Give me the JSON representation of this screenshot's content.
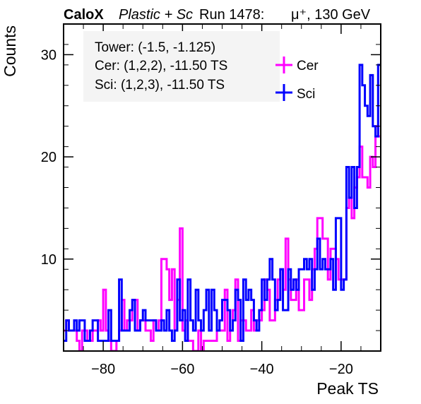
{
  "chart_data": {
    "type": "step-histogram",
    "title": {
      "brand": "CaloX",
      "material": "Plastic + Sc",
      "run": "Run 1478:",
      "particle": "μ⁺, 130 GeV"
    },
    "xlabel": "Peak TS",
    "ylabel": "Counts",
    "xlim": [
      -90,
      -10
    ],
    "ylim": [
      1,
      33
    ],
    "x_ticks": [
      -80,
      -60,
      -40,
      -20
    ],
    "x_tick_labels": [
      "−80",
      "−60",
      "−40",
      "−20"
    ],
    "y_ticks": [
      10,
      20,
      30
    ],
    "y_tick_labels": [
      "10",
      "20",
      "30"
    ],
    "bin_width": 1,
    "bin_start": -90,
    "info_box": [
      "Tower: (-1.5, -1.125)",
      "Cer: (1,2,2), -11.50 TS",
      "Sci: (1,2,3), -11.50 TS"
    ],
    "legend_position": "top-right",
    "series": [
      {
        "name": "Cer",
        "color": "#ff00ff",
        "values": [
          3,
          4,
          3,
          3,
          3,
          2,
          1,
          3,
          3,
          2,
          2,
          3,
          3,
          4,
          3,
          7,
          3,
          2,
          1,
          1,
          2,
          3,
          6,
          3,
          4,
          4,
          6,
          6,
          3,
          4,
          4,
          3,
          3,
          2,
          4,
          3,
          4,
          10,
          10,
          9,
          6,
          9,
          3,
          6,
          13,
          3,
          4,
          2,
          2,
          1,
          1,
          3,
          1,
          2,
          2,
          2,
          2,
          2,
          3,
          3,
          3,
          7,
          2,
          3,
          5,
          8,
          2,
          4,
          4,
          3,
          3,
          5,
          3,
          4,
          4,
          5,
          8,
          7,
          4,
          4,
          6,
          8,
          9,
          7,
          12,
          8,
          6,
          6,
          8,
          5,
          5,
          8,
          8,
          6,
          9,
          11,
          14,
          14,
          12,
          12,
          8,
          11,
          11,
          10,
          8,
          8,
          8,
          15,
          16,
          14,
          17,
          18,
          21,
          18,
          18,
          17,
          20,
          19,
          23,
          22
        ]
      },
      {
        "name": "Sci",
        "color": "#0000ff",
        "values": [
          2,
          4,
          3,
          3,
          4,
          3,
          4,
          4,
          2,
          2,
          3,
          4,
          4,
          2,
          2,
          2,
          2,
          5,
          2,
          2,
          2,
          8,
          3,
          3,
          3,
          5,
          6,
          3,
          3,
          4,
          5,
          4,
          4,
          4,
          4,
          3,
          3,
          4,
          3,
          5,
          3,
          2,
          3,
          8,
          4,
          5,
          2,
          8,
          4,
          3,
          7,
          4,
          3,
          5,
          7,
          3,
          7,
          5,
          3,
          4,
          6,
          6,
          5,
          3,
          4,
          7,
          6,
          2,
          8,
          6,
          7,
          6,
          4,
          3,
          5,
          8,
          6,
          8,
          10,
          8,
          5,
          6,
          9,
          5,
          5,
          9,
          7,
          8,
          7,
          9,
          9,
          10,
          9,
          10,
          7,
          9,
          12,
          9,
          10,
          9,
          9,
          10,
          7,
          14,
          14,
          7,
          8,
          19,
          16,
          19,
          15,
          19,
          29,
          27,
          25,
          24,
          28,
          23,
          22,
          29
        ]
      }
    ]
  }
}
